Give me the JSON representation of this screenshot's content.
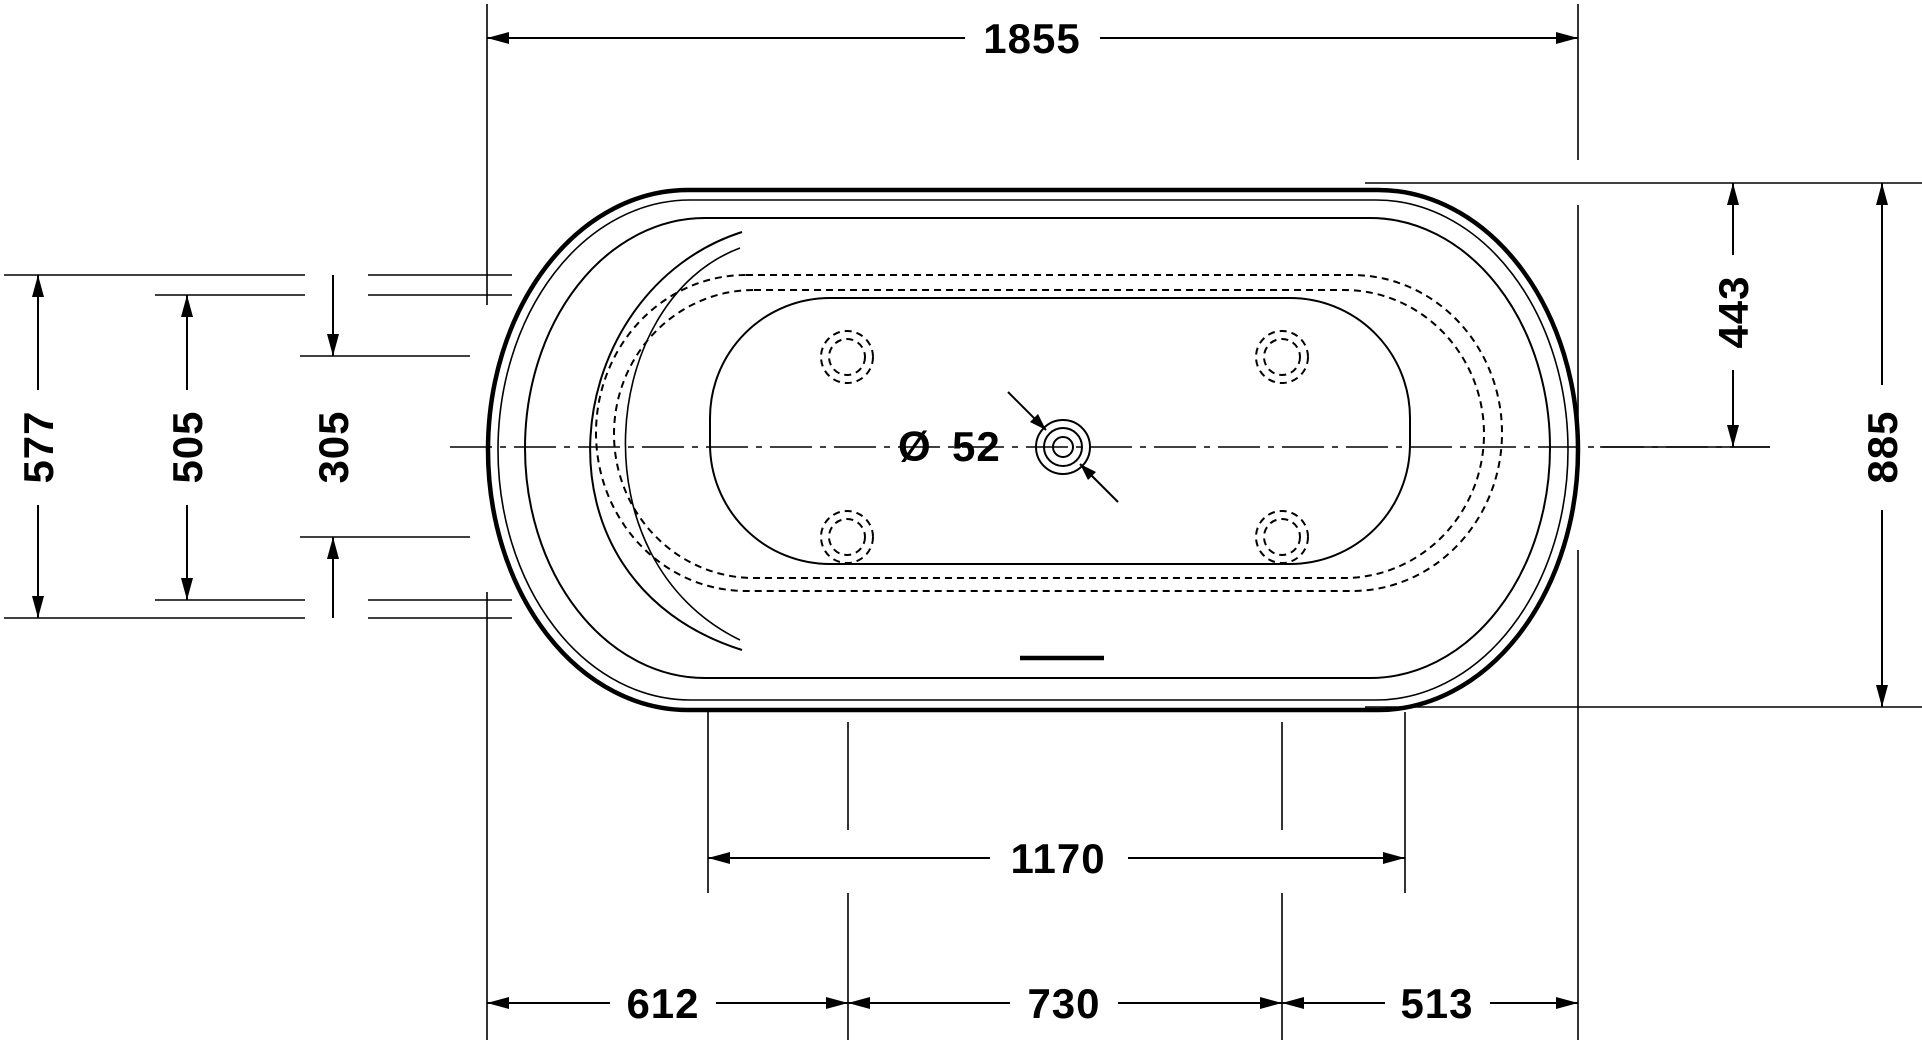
{
  "drawing": {
    "dimensions": {
      "overall_length": "1855",
      "overall_width": "885",
      "center_to_edge": "443",
      "foot_span": "1170",
      "left_offset": "612",
      "middle_span": "730",
      "right_offset": "513",
      "height_outer": "577",
      "height_rim": "505",
      "height_basin": "305",
      "drain_diameter": "52"
    },
    "drain_symbol": "Ø"
  }
}
